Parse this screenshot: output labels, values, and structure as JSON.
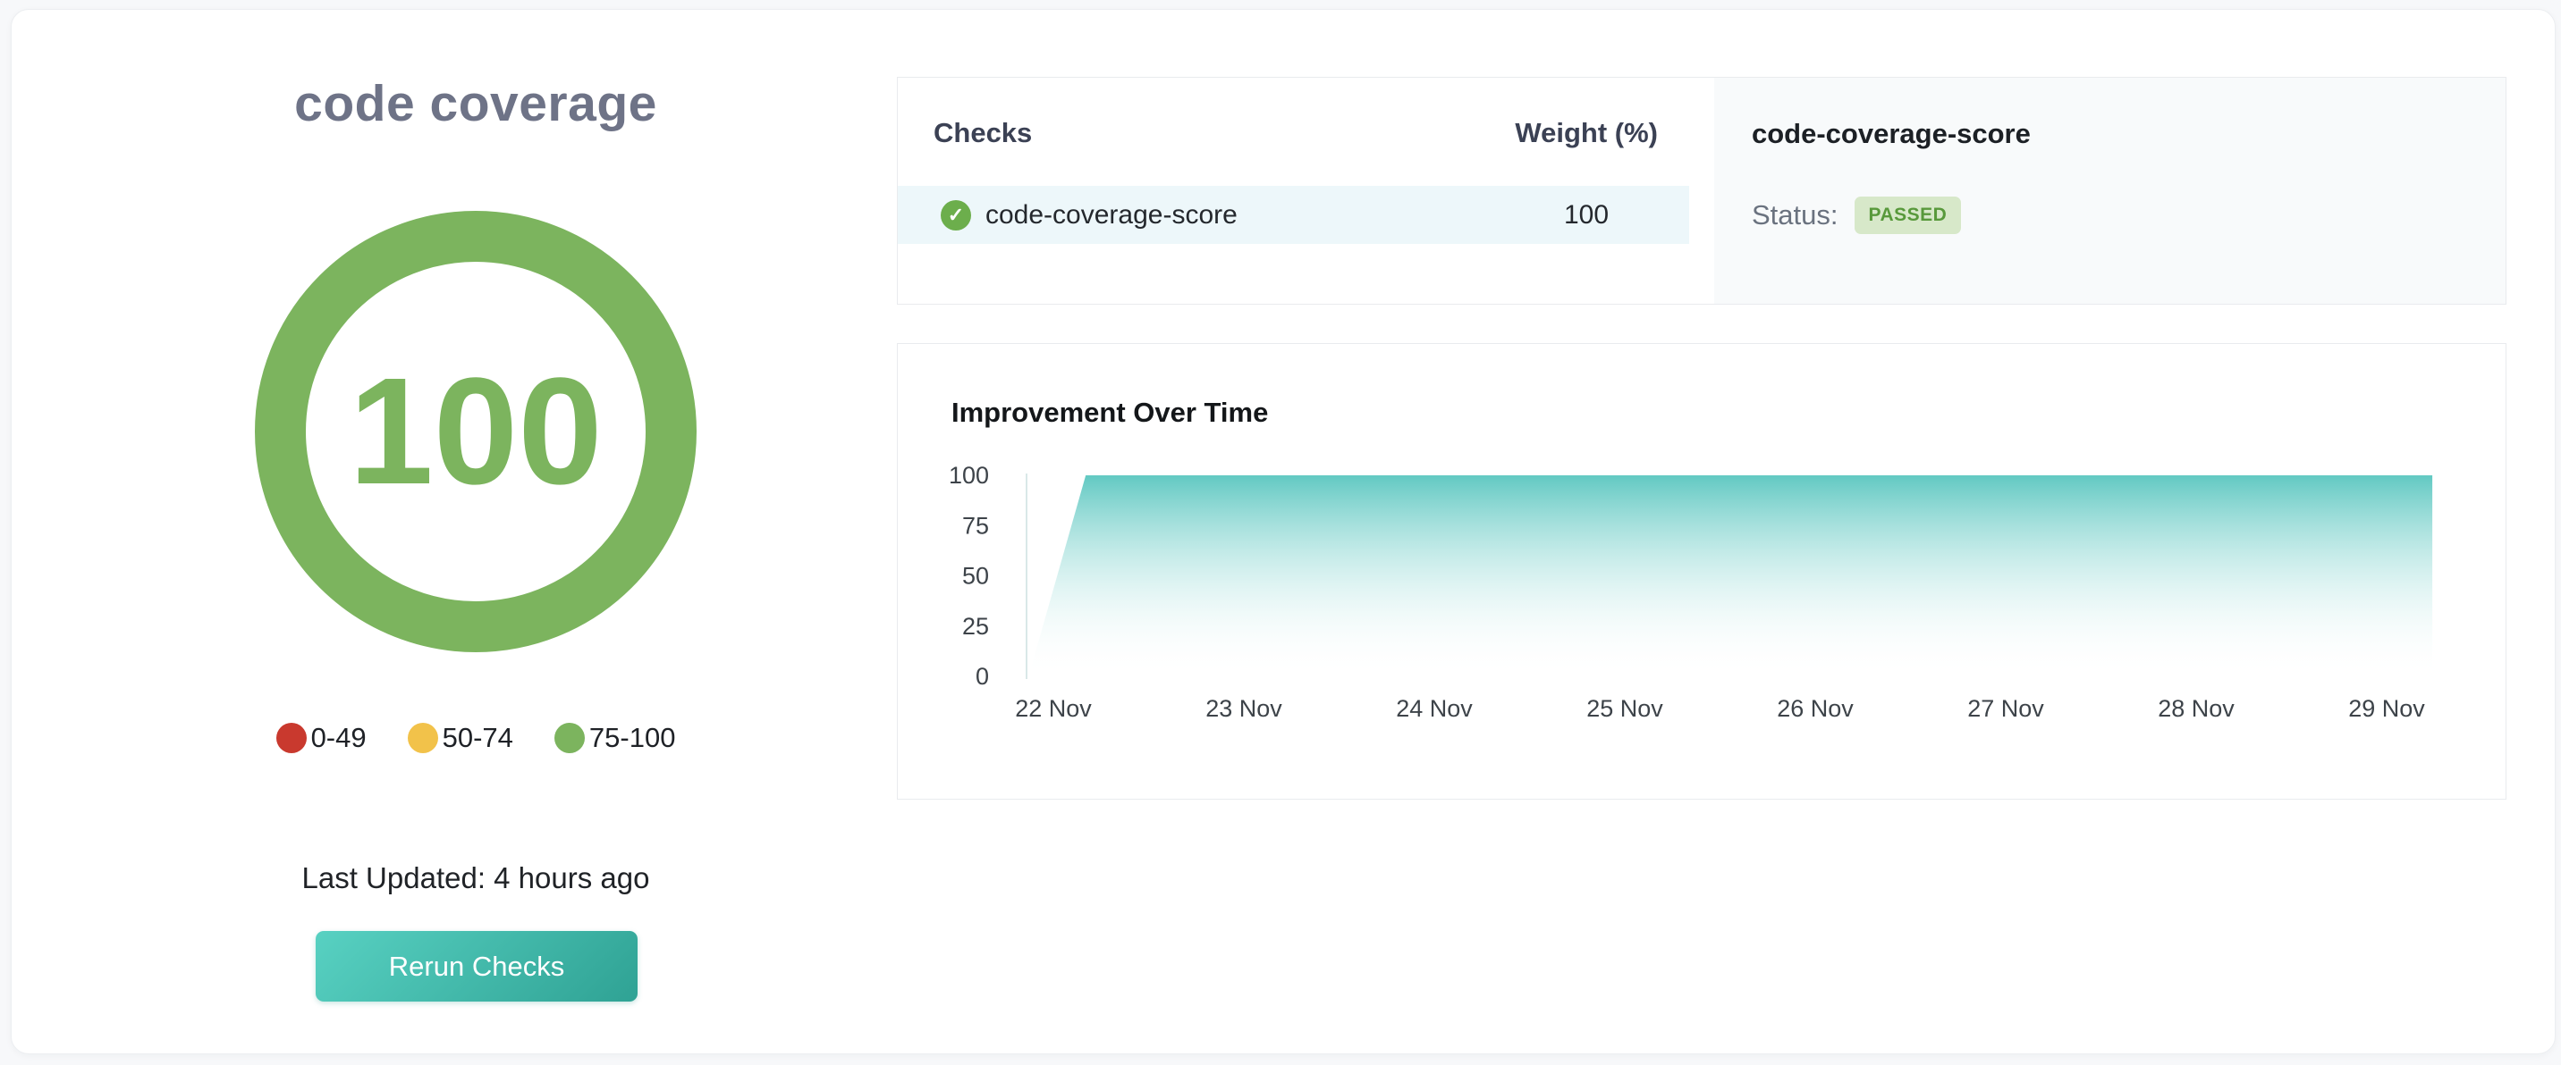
{
  "page_title": "code coverage",
  "gauge": {
    "score": "100",
    "ring_color": "#7cb45e",
    "legend": [
      {
        "label": "0-49",
        "color": "#c9392e"
      },
      {
        "label": "50-74",
        "color": "#f2c24a"
      },
      {
        "label": "75-100",
        "color": "#7cb45e"
      }
    ]
  },
  "last_updated": "Last Updated: 4 hours ago",
  "rerun_button_label": "Rerun Checks",
  "checks_table": {
    "columns": [
      "Checks",
      "Weight (%)"
    ],
    "rows": [
      {
        "name": "code-coverage-score",
        "weight": "100",
        "status_icon": "check-passed",
        "icon_glyph": "✓"
      }
    ]
  },
  "check_detail": {
    "title": "code-coverage-score",
    "status_label": "Status:",
    "status_value": "PASSED",
    "badge_bg": "#d7e8c9",
    "badge_color": "#58993b"
  },
  "chart_data": {
    "type": "area",
    "title": "Improvement Over Time",
    "xlabel": "",
    "ylabel": "",
    "x_tick_labels": [
      "22 Nov",
      "23 Nov",
      "24 Nov",
      "25 Nov",
      "26 Nov",
      "27 Nov",
      "28 Nov",
      "29 Nov"
    ],
    "y_ticks": [
      0,
      25,
      50,
      75,
      100
    ],
    "ylim": [
      0,
      100
    ],
    "grid": false,
    "legend_position": "none",
    "series": [
      {
        "name": "code-coverage-score",
        "description": "Score starts at 0 at 22 Nov, jumps to 100 almost immediately, then stays flat at 100 through 29 Nov",
        "points_days_from_22nov": [
          [
            -0.13,
            0
          ],
          [
            0.17,
            100
          ],
          [
            7.24,
            100
          ]
        ]
      }
    ],
    "area_color_top": "rgba(84,196,189,0.92)",
    "area_color_bottom": "rgba(255,255,255,0)",
    "axis_line_color": "#d9e8e8",
    "tick_label_color": "#3d4349"
  }
}
